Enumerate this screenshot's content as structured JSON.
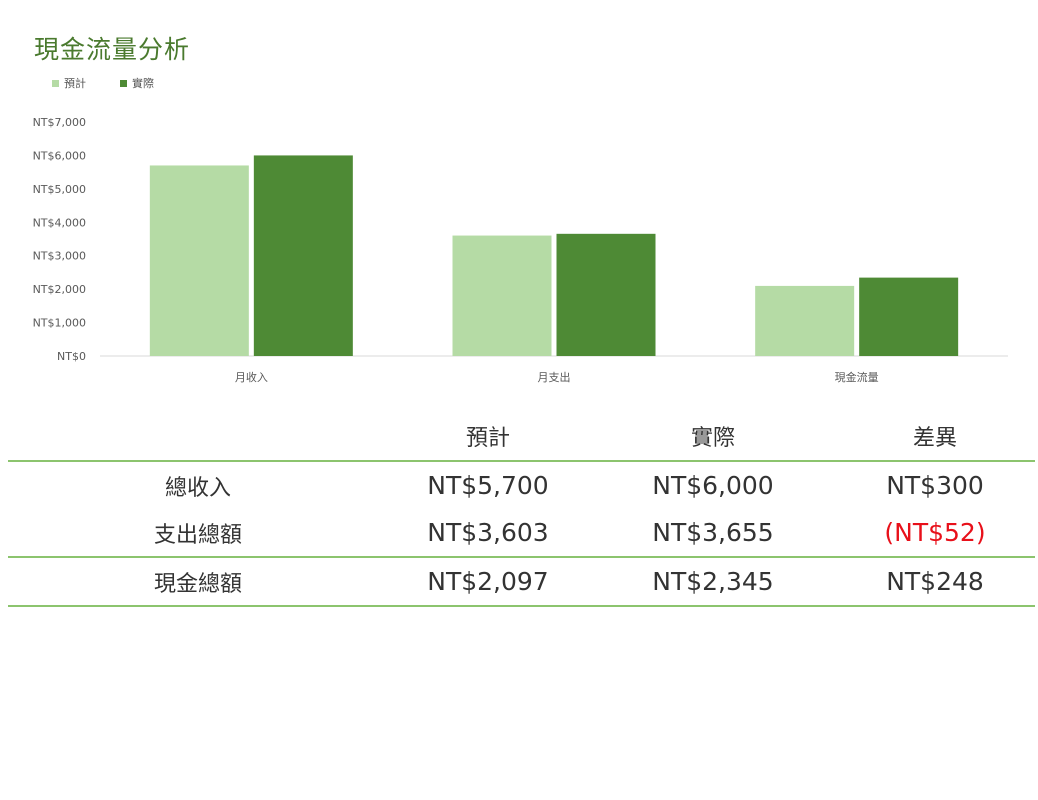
{
  "title": "現金流量分析",
  "colors": {
    "budget": "#b5dba5",
    "actual": "#4e8a35",
    "title": "#4a7a2e",
    "rule": "#8cc46e",
    "negative": "#e8101a"
  },
  "chart_data": {
    "type": "bar",
    "categories": [
      "月收入",
      "月支出",
      "現金流量"
    ],
    "series": [
      {
        "name": "預計",
        "values": [
          5700,
          3603,
          2097
        ]
      },
      {
        "name": "實際",
        "values": [
          6000,
          3655,
          2345
        ]
      }
    ],
    "ylim": [
      0,
      7000
    ],
    "yticks": [
      0,
      1000,
      2000,
      3000,
      4000,
      5000,
      6000,
      7000
    ],
    "ytick_labels": [
      "NT$0",
      "NT$1,000",
      "NT$2,000",
      "NT$3,000",
      "NT$4,000",
      "NT$5,000",
      "NT$6,000",
      "NT$7,000"
    ],
    "legend_position": "top-left",
    "grid": false
  },
  "table": {
    "headers": [
      "",
      "預計",
      "實際",
      "差異"
    ],
    "rows": [
      {
        "label": "總收入",
        "budget": "NT$5,700",
        "actual": "NT$6,000",
        "diff": "NT$300"
      },
      {
        "label": "支出總額",
        "budget": "NT$3,603",
        "actual": "NT$3,655",
        "diff": "(NT$52)"
      },
      {
        "label": "現金總額",
        "budget": "NT$2,097",
        "actual": "NT$2,345",
        "diff": "NT$248"
      }
    ]
  }
}
